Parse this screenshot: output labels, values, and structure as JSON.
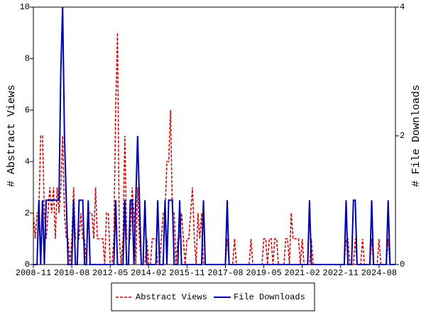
{
  "chart_data": {
    "type": "line",
    "y_label": "# Abstract Views",
    "y2_label": "# File Downloads",
    "x": [
      "2008-11",
      "2008-12",
      "2009-01",
      "2009-02",
      "2009-03",
      "2009-04",
      "2009-05",
      "2009-06",
      "2009-07",
      "2009-08",
      "2009-09",
      "2009-10",
      "2009-11",
      "2009-12",
      "2010-01",
      "2010-02",
      "2010-03",
      "2010-04",
      "2010-05",
      "2010-06",
      "2010-07",
      "2010-08",
      "2010-09",
      "2010-10",
      "2010-11",
      "2010-12",
      "2011-01",
      "2011-02",
      "2011-03",
      "2011-04",
      "2011-05",
      "2011-06",
      "2011-07",
      "2011-08",
      "2011-09",
      "2011-10",
      "2011-11",
      "2011-12",
      "2012-01",
      "2012-02",
      "2012-03",
      "2012-04",
      "2012-05",
      "2012-06",
      "2012-07",
      "2012-08",
      "2012-09",
      "2012-10",
      "2012-11",
      "2012-12",
      "2013-01",
      "2013-02",
      "2013-03",
      "2013-04",
      "2013-05",
      "2013-06",
      "2013-07",
      "2013-08",
      "2013-09",
      "2013-10",
      "2013-11",
      "2013-12",
      "2014-01",
      "2014-02",
      "2014-03",
      "2014-04",
      "2014-05",
      "2014-06",
      "2014-07",
      "2014-08",
      "2014-09",
      "2014-10",
      "2014-11",
      "2014-12",
      "2015-01",
      "2015-02",
      "2015-03",
      "2015-04",
      "2015-05",
      "2015-06",
      "2015-07",
      "2015-08",
      "2015-09",
      "2015-10",
      "2015-11",
      "2015-12",
      "2016-01",
      "2016-02",
      "2016-03",
      "2016-04",
      "2016-05",
      "2016-06",
      "2016-07",
      "2016-08",
      "2016-09",
      "2016-10",
      "2016-11",
      "2016-12",
      "2017-01",
      "2017-02",
      "2017-03",
      "2017-04",
      "2017-05",
      "2017-06",
      "2017-07",
      "2017-08",
      "2017-09",
      "2017-10",
      "2017-11",
      "2017-12",
      "2018-01",
      "2018-02",
      "2018-03",
      "2018-04",
      "2018-05",
      "2018-06",
      "2018-07",
      "2018-08",
      "2018-09",
      "2018-10",
      "2018-11",
      "2018-12",
      "2019-01",
      "2019-02",
      "2019-03",
      "2019-04",
      "2019-05",
      "2019-06",
      "2019-07",
      "2019-08",
      "2019-09",
      "2019-10",
      "2019-11",
      "2019-12",
      "2020-01",
      "2020-02",
      "2020-03",
      "2020-04",
      "2020-05",
      "2020-06",
      "2020-07",
      "2020-08",
      "2020-09",
      "2020-10",
      "2020-11",
      "2020-12",
      "2021-01",
      "2021-02",
      "2021-03",
      "2021-04",
      "2021-05",
      "2021-06",
      "2021-07",
      "2021-08",
      "2021-09",
      "2021-10",
      "2021-11",
      "2021-12",
      "2022-01",
      "2022-02",
      "2022-03",
      "2022-04",
      "2022-05",
      "2022-06",
      "2022-07",
      "2022-08",
      "2022-09",
      "2022-10",
      "2022-11",
      "2022-12",
      "2023-01",
      "2023-02",
      "2023-03",
      "2023-04",
      "2023-05",
      "2023-06",
      "2023-07",
      "2023-08",
      "2023-09",
      "2023-10",
      "2023-11",
      "2023-12",
      "2024-01",
      "2024-02",
      "2024-03",
      "2024-04",
      "2024-05",
      "2024-06",
      "2024-07",
      "2024-08",
      "2024-09",
      "2024-10",
      "2024-11",
      "2024-12",
      "2025-01",
      "2025-02",
      "2025-03",
      "2025-04",
      "2025-05"
    ],
    "xticks": [
      "2008-11",
      "2010-08",
      "2012-05",
      "2014-02",
      "2015-11",
      "2017-08",
      "2019-05",
      "2021-02",
      "2022-11",
      "2024-08"
    ],
    "ylim": [
      0,
      10
    ],
    "yticks": [
      0,
      2,
      4,
      6,
      8,
      10
    ],
    "y2lim": [
      0,
      4
    ],
    "y2ticks": [
      0,
      2,
      4
    ],
    "series": [
      {
        "name": "Abstract Views",
        "color": "#cc0000",
        "dash": true,
        "values": [
          2,
          1,
          2,
          2,
          5,
          5,
          2,
          1,
          2,
          3,
          2,
          3,
          1,
          3,
          2,
          3,
          5,
          2,
          1,
          1,
          0,
          1,
          3,
          1,
          1,
          1,
          2,
          1,
          1,
          0,
          2,
          2,
          2,
          1,
          3,
          1,
          1,
          1,
          1,
          0,
          2,
          2,
          0,
          0,
          1,
          6,
          9,
          1,
          0,
          1,
          5,
          1,
          1,
          1,
          3,
          2,
          0,
          3,
          1,
          0,
          0,
          0,
          1,
          0,
          0,
          1,
          1,
          1,
          0,
          0,
          1,
          2,
          2,
          4,
          4,
          6,
          2,
          2,
          0,
          1,
          1,
          2,
          1,
          0,
          1,
          1,
          2,
          3,
          1,
          0,
          2,
          1,
          2,
          0,
          0,
          0,
          0,
          0,
          0,
          0,
          0,
          0,
          0,
          0,
          0,
          0,
          1,
          0,
          0,
          0,
          1,
          0,
          0,
          0,
          0,
          0,
          0,
          0,
          0,
          1,
          0,
          0,
          0,
          0,
          0,
          0,
          1,
          1,
          0,
          1,
          1,
          0,
          1,
          1,
          0,
          0,
          0,
          0,
          1,
          1,
          0,
          2,
          1,
          1,
          1,
          1,
          0,
          1,
          0,
          0,
          0,
          0,
          1,
          0,
          0,
          0,
          0,
          0,
          0,
          0,
          0,
          0,
          0,
          0,
          0,
          0,
          0,
          0,
          0,
          0,
          0,
          1,
          1,
          0,
          0,
          0,
          1,
          0,
          0,
          0,
          1,
          0,
          0,
          0,
          0,
          1,
          0,
          0,
          0,
          1,
          0,
          0,
          0,
          0,
          1,
          0,
          0,
          0,
          0
        ]
      },
      {
        "name": "File Downloads",
        "color": "#0000aa",
        "dash": false,
        "axis": "y2",
        "values": [
          0,
          0,
          0,
          1,
          0,
          1,
          0,
          1,
          1,
          1,
          1,
          1,
          1,
          1,
          1,
          3,
          4,
          2,
          1,
          0,
          0,
          0,
          1,
          0,
          0,
          1,
          1,
          1,
          0,
          0,
          1,
          0,
          0,
          0,
          0,
          0,
          0,
          0,
          0,
          0,
          0,
          0,
          0,
          0,
          0,
          1,
          0,
          0,
          0,
          0,
          1,
          0,
          0,
          1,
          1,
          0,
          1,
          2,
          1,
          0,
          0,
          1,
          0,
          0,
          0,
          0,
          0,
          0,
          1,
          0,
          0,
          0,
          1,
          0,
          1,
          1,
          1,
          0,
          0,
          0,
          1,
          0,
          0,
          0,
          0,
          0,
          0,
          0,
          0,
          0,
          0,
          0,
          0,
          1,
          0,
          0,
          0,
          0,
          0,
          0,
          0,
          0,
          0,
          0,
          0,
          0,
          1,
          0,
          0,
          0,
          0,
          0,
          0,
          0,
          0,
          0,
          0,
          0,
          0,
          0,
          0,
          0,
          0,
          0,
          0,
          0,
          0,
          0,
          0,
          0,
          0,
          0,
          0,
          0,
          0,
          0,
          0,
          0,
          0,
          0,
          0,
          0,
          0,
          0,
          0,
          0,
          0,
          0,
          0,
          0,
          0,
          1,
          0,
          0,
          0,
          0,
          0,
          0,
          0,
          0,
          0,
          0,
          0,
          0,
          0,
          0,
          0,
          0,
          0,
          0,
          0,
          1,
          0,
          0,
          0,
          1,
          1,
          0,
          0,
          0,
          0,
          0,
          0,
          0,
          0,
          1,
          0,
          0,
          0,
          0,
          0,
          0,
          0,
          0,
          1,
          0,
          0,
          0,
          0
        ]
      }
    ]
  }
}
